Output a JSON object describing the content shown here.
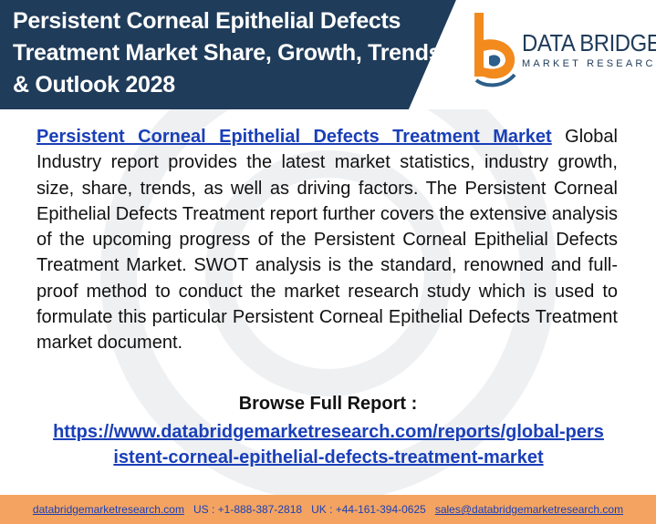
{
  "header": {
    "title": "Persistent Corneal Epithelial Defects Treatment Market Share, Growth, Trends & Outlook 2028",
    "bg_color": "#1f3c5a"
  },
  "logo": {
    "name": "DATA BRIDGE",
    "tagline": "MARKET RESEARCH",
    "icon": "data-bridge-b-logo"
  },
  "body": {
    "link_text": "Persistent Corneal Epithelial Defects Treatment Market",
    "text": " Global Industry report provides the latest market statistics, industry growth, size, share, trends, as well as driving factors. The Persistent Corneal Epithelial Defects Treatment report further covers the extensive analysis of the upcoming progress of the Persistent Corneal Epithelial Defects Treatment Market. SWOT analysis is the standard, renowned and full-proof method to conduct the market research study which is used to formulate this particular Persistent Corneal Epithelial Defects Treatment market document."
  },
  "browse": {
    "label": "Browse Full Report :",
    "url": "https://www.databridgemarketresearch.com/reports/global-persistent-corneal-epithelial-defects-treatment-market"
  },
  "footer": {
    "website": "databridgemarketresearch.com",
    "us_phone": "US : +1-888-387-2818",
    "uk_phone": "UK : +44-161-394-0625",
    "email": "sales@databridgemarketresearch.com",
    "bg_color": "#f4a460"
  }
}
